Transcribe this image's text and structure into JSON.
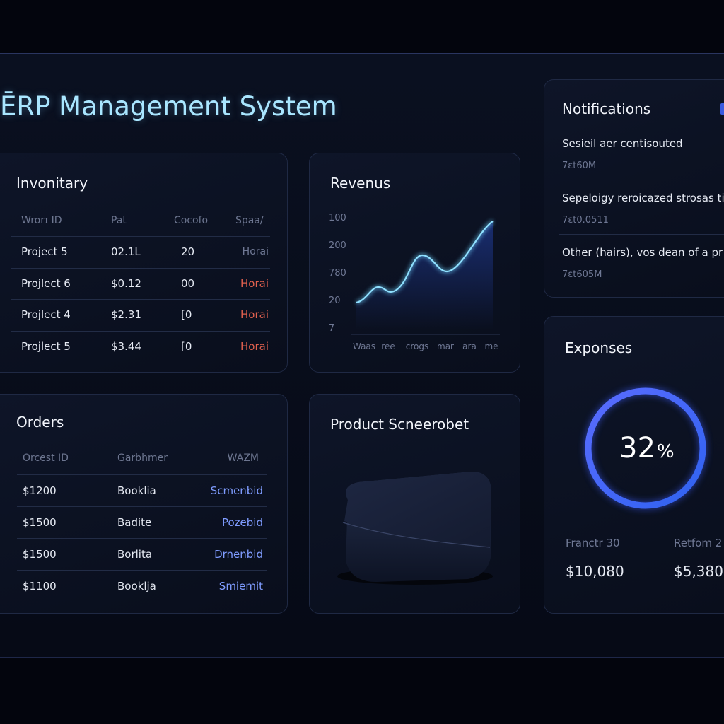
{
  "header": {
    "title": "ĒRP Management System"
  },
  "inventory": {
    "title": "Invonitary",
    "columns": [
      "Wrorɪ ID",
      "Pat",
      "Cocofo",
      "Spaa/"
    ],
    "rows": [
      [
        "Project 5",
        "02.1L",
        "20",
        "Horai"
      ],
      [
        "Projlect 6",
        "$0.12",
        "00",
        "Horai"
      ],
      [
        "Projlect 4",
        "$2.31",
        "[0",
        "Horai"
      ],
      [
        "Projlect 5",
        "$3.44",
        "[0",
        "Horai"
      ]
    ]
  },
  "revenue": {
    "title": "Revenus",
    "y_labels": [
      "100",
      "200",
      "780",
      "20",
      "7"
    ],
    "x_labels": [
      "Waas",
      "ree",
      "crogs",
      "mar",
      "ara",
      "me"
    ]
  },
  "notifications": {
    "title": "Notifications",
    "items": [
      {
        "text": "Sesieil aer centisouted",
        "meta": "7ɛt60M"
      },
      {
        "text": "Sepeloigy reroicazed strosas ti",
        "meta": "7ɛt0.0511"
      },
      {
        "text": "Other (hairs), vos dean of a pr",
        "meta": "7ɛt605M"
      }
    ]
  },
  "orders": {
    "title": "Orders",
    "columns": [
      "Orcest ID",
      "Garbhmer",
      "WAZM"
    ],
    "rows": [
      [
        "$1200",
        "Booklia",
        "Scmenbid"
      ],
      [
        "$1500",
        "Badite",
        "Pozebid"
      ],
      [
        "$1500",
        "Borlita",
        "Drnenbid"
      ],
      [
        "$1100",
        "Booklja",
        "Smiemit"
      ]
    ]
  },
  "product": {
    "title": "Product Scneerobet"
  },
  "expenses": {
    "title": "Exponses",
    "percent": 32,
    "percent_unit": "%",
    "stats": [
      {
        "label": "Franctr 30",
        "value": "$10,080"
      },
      {
        "label": "Retfom 2",
        "value": "$5,380"
      }
    ]
  }
}
